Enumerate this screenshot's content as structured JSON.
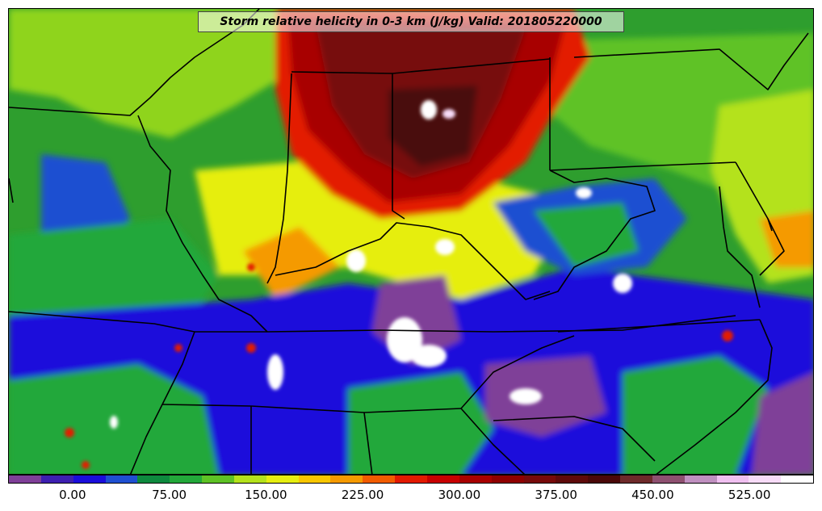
{
  "title": "Storm relative helicity in 0-3 km (J/kg) Valid: 201805220000",
  "colorbar": {
    "colors": [
      "#7f3f98",
      "#3d1fb0",
      "#1a0ddb",
      "#1f4fd1",
      "#0e8a3e",
      "#23a83a",
      "#5ec225",
      "#b4e21c",
      "#e6ee10",
      "#f8c700",
      "#f59a00",
      "#f25c00",
      "#e31a00",
      "#c80000",
      "#a80000",
      "#8f0000",
      "#770a0a",
      "#5e0a0a",
      "#4a0808",
      "#6e2a2a",
      "#8e5070",
      "#c090c0",
      "#f0c0f0",
      "#f8dcf8",
      "#ffffff"
    ],
    "tick_labels": [
      "0.00",
      "75.00",
      "150.00",
      "225.00",
      "300.00",
      "375.00",
      "450.00",
      "525.00"
    ],
    "tick_values": [
      0,
      75,
      150,
      225,
      300,
      375,
      450,
      525
    ],
    "min": -50,
    "max": 575
  },
  "map_colors": {
    "background_green": "#2e9e2e",
    "light_green": "#5ec225",
    "yellow_green": "#b4e21c",
    "yellow": "#e6ee10",
    "orange": "#f59a00",
    "red": "#e31a00",
    "dark_red": "#a80000",
    "maroon": "#5e0a0a",
    "blue": "#1a0ddb",
    "purple": "#7f3f98",
    "white": "#ffffff",
    "boundary": "#000000"
  }
}
